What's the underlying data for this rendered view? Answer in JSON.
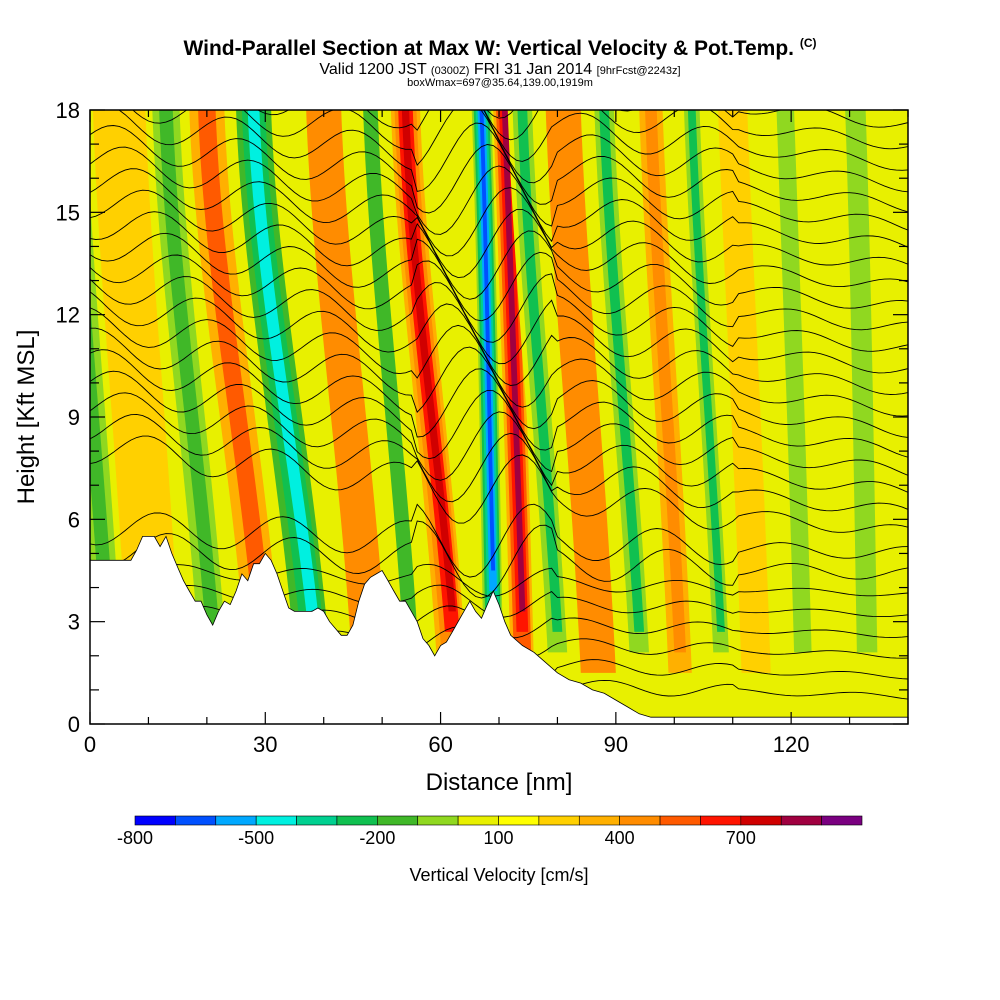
{
  "header": {
    "title": "Wind-Parallel Section at Max W: Vertical Velocity & Pot.Temp.",
    "copyright": "(C)",
    "valid_a": "Valid 1200 JST",
    "valid_z": "(0300Z)",
    "valid_b": "FRI 31 Jan 2014",
    "fcst": "[9hrFcst@2243z]",
    "boxwmax": "boxWmax=697@35.64,139.00,1919m"
  },
  "chart_data": {
    "type": "heatmap",
    "xlabel": "Distance [nm]",
    "ylabel": "Height [Kft MSL]",
    "xlim": [
      0,
      140
    ],
    "ylim": [
      0,
      18
    ],
    "x_ticks": [
      "0",
      "30",
      "60",
      "90",
      "120"
    ],
    "x_tick_values": [
      0,
      30,
      60,
      90,
      120
    ],
    "y_ticks": [
      "0",
      "3",
      "6",
      "9",
      "12",
      "15",
      "18"
    ],
    "y_tick_values": [
      0,
      3,
      6,
      9,
      12,
      15,
      18
    ],
    "colorbar": {
      "label": "Vertical Velocity [cm/s]",
      "tick_labels": [
        "-800",
        "-500",
        "-200",
        "100",
        "400",
        "700"
      ],
      "colors": [
        "#0000ff",
        "#0050ff",
        "#00a8ff",
        "#00f0e0",
        "#00d090",
        "#10c050",
        "#40b828",
        "#90d820",
        "#e8f000",
        "#ffff00",
        "#ffd000",
        "#ffb000",
        "#ff8c00",
        "#ff5a00",
        "#ff1400",
        "#d00000",
        "#a00040",
        "#7a0080"
      ]
    },
    "terrain_kft": [
      [
        0,
        4.8
      ],
      [
        7,
        4.8
      ],
      [
        8,
        5.1
      ],
      [
        9,
        5.5
      ],
      [
        11,
        5.5
      ],
      [
        12,
        5.2
      ],
      [
        13,
        5.5
      ],
      [
        14,
        5.0
      ],
      [
        15,
        4.6
      ],
      [
        16,
        4.2
      ],
      [
        17,
        3.9
      ],
      [
        18,
        3.6
      ],
      [
        19,
        3.6
      ],
      [
        20,
        3.2
      ],
      [
        21,
        2.9
      ],
      [
        22,
        3.3
      ],
      [
        23,
        3.6
      ],
      [
        24,
        3.5
      ],
      [
        25,
        3.9
      ],
      [
        26,
        4.4
      ],
      [
        27,
        4.2
      ],
      [
        28,
        4.7
      ],
      [
        29,
        4.7
      ],
      [
        30,
        5.0
      ],
      [
        31,
        4.8
      ],
      [
        32,
        4.4
      ],
      [
        33,
        3.9
      ],
      [
        34,
        3.4
      ],
      [
        35,
        3.3
      ],
      [
        38,
        3.3
      ],
      [
        39,
        3.4
      ],
      [
        40,
        3.3
      ],
      [
        41,
        3.0
      ],
      [
        42,
        2.8
      ],
      [
        43,
        2.6
      ],
      [
        44,
        2.6
      ],
      [
        45,
        2.9
      ],
      [
        46,
        3.6
      ],
      [
        47,
        4.1
      ],
      [
        48,
        4.3
      ],
      [
        49,
        4.4
      ],
      [
        50,
        4.5
      ],
      [
        51,
        4.2
      ],
      [
        52,
        3.9
      ],
      [
        53,
        3.6
      ],
      [
        54,
        3.6
      ],
      [
        55,
        3.3
      ],
      [
        56,
        3.0
      ],
      [
        57,
        2.5
      ],
      [
        58,
        2.3
      ],
      [
        59,
        2.0
      ],
      [
        60,
        2.3
      ],
      [
        61,
        2.4
      ],
      [
        62,
        2.7
      ],
      [
        63,
        3.0
      ],
      [
        64,
        3.3
      ],
      [
        65,
        3.6
      ],
      [
        66,
        3.3
      ],
      [
        67,
        3.1
      ],
      [
        68,
        3.5
      ],
      [
        69,
        3.9
      ],
      [
        70,
        3.5
      ],
      [
        71,
        3.0
      ],
      [
        72,
        2.6
      ],
      [
        74,
        2.3
      ],
      [
        76,
        2.1
      ],
      [
        78,
        1.8
      ],
      [
        80,
        1.5
      ],
      [
        82,
        1.3
      ],
      [
        84,
        1.2
      ],
      [
        86,
        1.0
      ],
      [
        88,
        0.9
      ],
      [
        90,
        0.7
      ],
      [
        92,
        0.5
      ],
      [
        94,
        0.3
      ],
      [
        96,
        0.2
      ],
      [
        140,
        0.2
      ]
    ],
    "velocity_bands": [
      {
        "x": 3,
        "w": 7,
        "tilt": 6,
        "value": -300
      },
      {
        "x": 11,
        "w": 9,
        "tilt": 6,
        "value": 100
      },
      {
        "x": 21,
        "w": 7,
        "tilt": 8,
        "value": -300
      },
      {
        "x": 30,
        "w": 6,
        "tilt": 10,
        "value": 400
      },
      {
        "x": 38,
        "w": 8,
        "tilt": 10,
        "value": -550
      },
      {
        "x": 48,
        "w": 6,
        "tilt": 8,
        "value": 300
      },
      {
        "x": 55,
        "w": 5,
        "tilt": 7,
        "value": -250
      },
      {
        "x": 62,
        "w": 5,
        "tilt": 8,
        "value": 650
      },
      {
        "x": 69,
        "w": 4,
        "tilt": 2,
        "value": -800
      },
      {
        "x": 74,
        "w": 4,
        "tilt": 3,
        "value": 750
      },
      {
        "x": 80,
        "w": 5,
        "tilt": 6,
        "value": -350
      },
      {
        "x": 87,
        "w": 6,
        "tilt": 6,
        "value": 300
      },
      {
        "x": 94,
        "w": 5,
        "tilt": 6,
        "value": -350
      },
      {
        "x": 101,
        "w": 4,
        "tilt": 5,
        "value": 350
      },
      {
        "x": 108,
        "w": 4,
        "tilt": 5,
        "value": -350
      },
      {
        "x": 114,
        "w": 5,
        "tilt": 4,
        "value": 150
      },
      {
        "x": 122,
        "w": 6,
        "tilt": 3,
        "value": -150
      },
      {
        "x": 133,
        "w": 7,
        "tilt": 2,
        "value": -200
      }
    ]
  }
}
